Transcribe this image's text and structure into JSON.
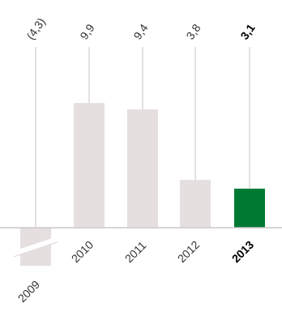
{
  "chart_data": {
    "type": "bar",
    "title": "",
    "xlabel": "",
    "ylabel": "",
    "categories": [
      "2009",
      "2010",
      "2011",
      "2012",
      "2013"
    ],
    "values": [
      -4.3,
      9.9,
      9.4,
      3.8,
      3.1
    ],
    "value_labels": [
      "(4,3)",
      "9,9",
      "9,4",
      "3,8",
      "3,1"
    ],
    "highlight_index": 4,
    "axis_break_on": "2009",
    "ylim": [
      -4.3,
      9.9
    ],
    "grid": false,
    "legend": "none",
    "colors": {
      "bar": "#e6dfdf",
      "highlight": "#007a33",
      "guide": "#d3cccc",
      "axis": "#cfc7c7",
      "break": "#ffffff"
    }
  }
}
